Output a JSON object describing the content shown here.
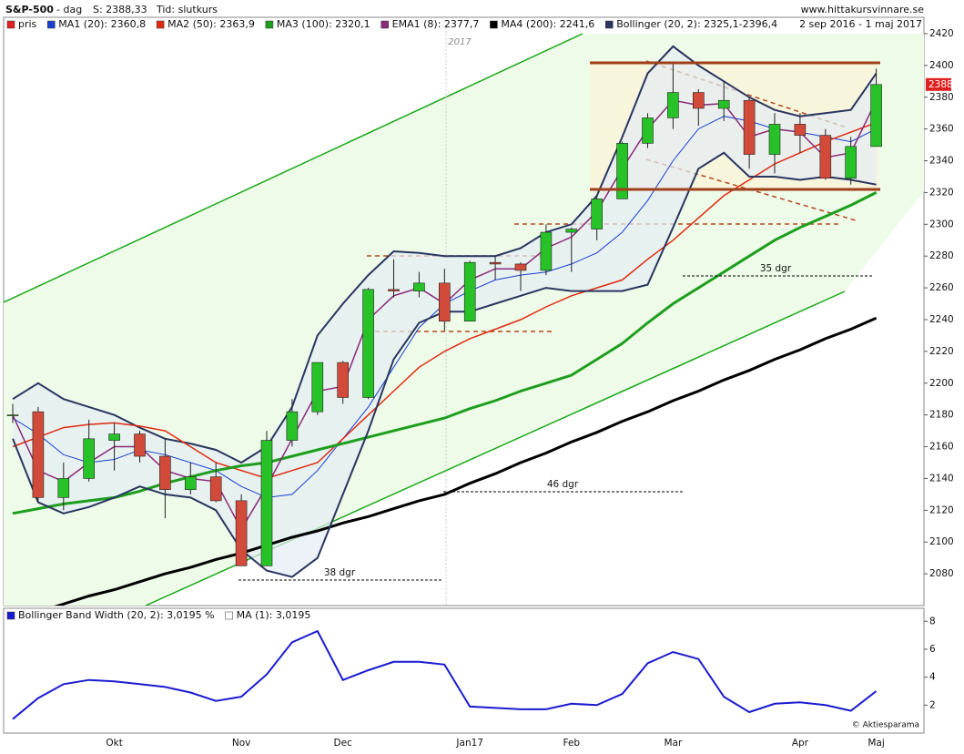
{
  "header": {
    "symbol": "S&P-500",
    "period": "- dag",
    "last": "S: 2388,33",
    "time": "Tid: slutkurs",
    "site": "www.hittakursvinnare.se",
    "range": "2 sep 2016 - 1 maj 2017",
    "year": "2017",
    "credit": "© Aktiesparama",
    "spans": [
      "38 dgr",
      "46 dgr",
      "35 dgr"
    ]
  },
  "chart_data": [
    {
      "type": "candlestick",
      "name": "pris",
      "color": "#e02020",
      "up_color": "#27c227",
      "down_color": "#d24a3a",
      "categories": [
        null,
        null,
        null,
        null,
        "Okt",
        null,
        null,
        null,
        null,
        "Nov",
        null,
        null,
        null,
        "Dec",
        null,
        null,
        null,
        null,
        "Jan17",
        null,
        null,
        null,
        "Feb",
        null,
        null,
        null,
        "Mar",
        null,
        null,
        null,
        null,
        "Apr",
        null,
        null,
        "Maj"
      ],
      "open": [
        2180,
        2182,
        2128,
        2140,
        2164,
        2168,
        2154,
        2133,
        2141,
        2126,
        2085,
        2164,
        2182,
        2213,
        2191,
        2259,
        2258,
        2263,
        2239,
        2276,
        2275,
        2271,
        2295,
        2297,
        2316,
        2351,
        2367,
        2383,
        2373,
        2378,
        2344,
        2363,
        2356,
        2329,
        2349
      ],
      "high": [
        2187,
        2185,
        2150,
        2177,
        2175,
        2170,
        2165,
        2150,
        2150,
        2130,
        2170,
        2190,
        2213,
        2214,
        2260,
        2278,
        2270,
        2272,
        2277,
        2280,
        2276,
        2300,
        2298,
        2318,
        2352,
        2370,
        2401,
        2385,
        2390,
        2380,
        2370,
        2370,
        2360,
        2355,
        2398
      ],
      "low": [
        2175,
        2125,
        2120,
        2138,
        2145,
        2150,
        2115,
        2130,
        2125,
        2085,
        2085,
        2160,
        2180,
        2187,
        2190,
        2254,
        2254,
        2233,
        2239,
        2265,
        2258,
        2268,
        2270,
        2290,
        2316,
        2348,
        2360,
        2362,
        2365,
        2335,
        2332,
        2345,
        2328,
        2325,
        2349
      ],
      "close": [
        2180,
        2128,
        2140,
        2165,
        2168,
        2154,
        2133,
        2141,
        2126,
        2085,
        2164,
        2182,
        2213,
        2191,
        2259,
        2258,
        2263,
        2239,
        2276,
        2275,
        2271,
        2295,
        2297,
        2316,
        2351,
        2367,
        2383,
        2373,
        2378,
        2344,
        2363,
        2356,
        2329,
        2349,
        2388
      ],
      "last_value": 2388,
      "series": [
        {
          "name": "MA1 (20): 2360,8",
          "color": "#1a3fd0",
          "width": 1,
          "values": [
            2178,
            2168,
            2155,
            2150,
            2152,
            2158,
            2155,
            2150,
            2145,
            2135,
            2128,
            2130,
            2145,
            2165,
            2185,
            2210,
            2235,
            2250,
            2258,
            2265,
            2268,
            2270,
            2275,
            2282,
            2295,
            2315,
            2340,
            2360,
            2368,
            2365,
            2360,
            2358,
            2355,
            2352,
            2360
          ]
        },
        {
          "name": "MA2 (50): 2363,9",
          "color": "#e02a10",
          "width": 1.5,
          "values": [
            2160,
            2166,
            2172,
            2174,
            2175,
            2173,
            2170,
            2160,
            2150,
            2145,
            2140,
            2145,
            2150,
            2165,
            2180,
            2195,
            2210,
            2220,
            2228,
            2234,
            2240,
            2248,
            2255,
            2260,
            2265,
            2278,
            2290,
            2304,
            2318,
            2328,
            2338,
            2345,
            2352,
            2358,
            2364
          ]
        },
        {
          "name": "MA3 (100): 2320,1",
          "color": "#1e9e1e",
          "width": 3,
          "values": [
            2118,
            2121,
            2124,
            2126,
            2128,
            2132,
            2137,
            2141,
            2145,
            2148,
            2150,
            2154,
            2158,
            2162,
            2166,
            2170,
            2174,
            2178,
            2184,
            2189,
            2195,
            2200,
            2205,
            2215,
            2225,
            2238,
            2250,
            2260,
            2270,
            2280,
            2290,
            2298,
            2305,
            2312,
            2320
          ]
        },
        {
          "name": "EMA1 (8): 2377,7",
          "color": "#8b2a7a",
          "width": 1.5,
          "values": [
            2180,
            2145,
            2138,
            2150,
            2160,
            2160,
            2145,
            2140,
            2138,
            2108,
            2135,
            2165,
            2195,
            2198,
            2240,
            2255,
            2260,
            2250,
            2265,
            2272,
            2272,
            2285,
            2292,
            2308,
            2335,
            2360,
            2378,
            2375,
            2376,
            2355,
            2360,
            2358,
            2342,
            2345,
            2378
          ]
        },
        {
          "name": "MA4 (200): 2241,6",
          "color": "#000000",
          "width": 3,
          "values": [
            2052,
            2056,
            2061,
            2066,
            2070,
            2075,
            2080,
            2084,
            2089,
            2093,
            2098,
            2103,
            2107,
            2112,
            2116,
            2121,
            2126,
            2130,
            2137,
            2143,
            2150,
            2156,
            2163,
            2169,
            2176,
            2182,
            2189,
            2195,
            2202,
            2208,
            2215,
            2221,
            2228,
            2234,
            2241
          ]
        },
        {
          "name": "Bollinger (20, 2): 2325,1-2396,4",
          "color": "#2a3560",
          "width": 2,
          "band": true,
          "upper": [
            2190,
            2200,
            2190,
            2185,
            2180,
            2172,
            2165,
            2162,
            2158,
            2150,
            2160,
            2185,
            2230,
            2250,
            2268,
            2283,
            2282,
            2280,
            2280,
            2280,
            2285,
            2295,
            2300,
            2318,
            2355,
            2395,
            2412,
            2400,
            2390,
            2380,
            2372,
            2368,
            2370,
            2372,
            2395
          ],
          "values": [
            2165,
            2125,
            2118,
            2122,
            2128,
            2135,
            2130,
            2128,
            2120,
            2095,
            2082,
            2078,
            2090,
            2130,
            2170,
            2215,
            2238,
            2245,
            2245,
            2250,
            2255,
            2260,
            2258,
            2258,
            2258,
            2262,
            2298,
            2335,
            2345,
            2330,
            2330,
            2328,
            2330,
            2328,
            2325
          ]
        }
      ],
      "ylim": [
        2060,
        2424
      ],
      "yticks": [
        2080,
        2100,
        2120,
        2140,
        2160,
        2180,
        2200,
        2220,
        2240,
        2260,
        2280,
        2300,
        2320,
        2340,
        2360,
        2380,
        2400,
        2420
      ]
    },
    {
      "type": "line",
      "ma_label": "MA (1): 3,0195",
      "series": [
        {
          "name": "Bollinger Band Width (20, 2): 3,0195 %",
          "color": "#1a1ad0",
          "width": 2,
          "values": [
            1.0,
            2.5,
            3.5,
            3.8,
            3.7,
            3.5,
            3.3,
            2.9,
            2.3,
            2.6,
            4.2,
            6.5,
            7.3,
            3.8,
            4.5,
            5.1,
            5.1,
            4.9,
            1.9,
            1.8,
            1.7,
            1.7,
            2.1,
            2.0,
            2.8,
            5.0,
            5.8,
            5.3,
            2.6,
            1.5,
            2.1,
            2.2,
            2.0,
            1.6,
            3.0
          ]
        }
      ],
      "ylim": [
        0,
        8.8
      ],
      "yticks": [
        2,
        4,
        6,
        8
      ]
    }
  ]
}
